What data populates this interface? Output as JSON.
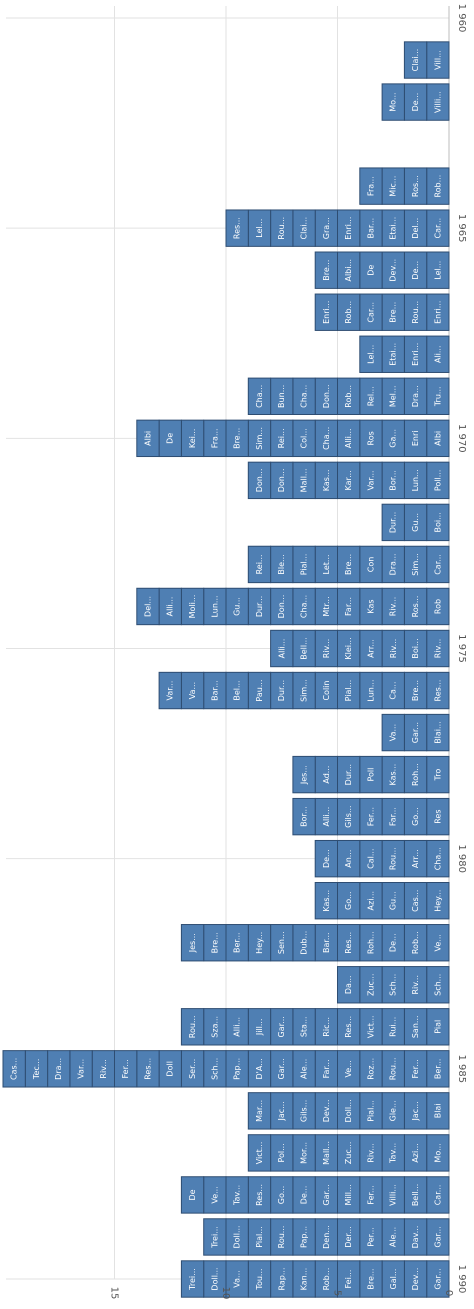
{
  "chart_data": {
    "type": "bar",
    "x_axis": {
      "ticks": [
        "1 960",
        "1 965",
        "1 970",
        "1 975",
        "1 980",
        "1 985",
        "1 990"
      ],
      "range": [
        1960,
        1990
      ]
    },
    "y_axis": {
      "ticks": [
        "0",
        "5",
        "10",
        "15"
      ],
      "range": [
        0,
        20
      ]
    },
    "grid": true,
    "columns": [
      {
        "year": 1961,
        "items": [
          "Vill...",
          "Clai..."
        ]
      },
      {
        "year": 1962,
        "items": [
          "Villi...",
          "De...",
          "Mo..."
        ]
      },
      {
        "year": 1964,
        "items": [
          "Rob...",
          "Ros...",
          "Mic...",
          "Fra..."
        ]
      },
      {
        "year": 1965,
        "items": [
          "Car...",
          "Del...",
          "Etai...",
          "Bar...",
          "Enri...",
          "Gra...",
          "Clai...",
          "Rou...",
          "Lel...",
          "Res..."
        ]
      },
      {
        "year": 1966,
        "items": [
          "Lel...",
          "De...",
          "Dev...",
          "De",
          "Albi...",
          "Bre..."
        ]
      },
      {
        "year": 1967,
        "items": [
          "Enri...",
          "Rou...",
          "Bre...",
          "Car...",
          "Rob...",
          "Enri..."
        ]
      },
      {
        "year": 1968,
        "items": [
          "Ali...",
          "Enri...",
          "Etai...",
          "Lel..."
        ]
      },
      {
        "year": 1969,
        "items": [
          "Tru...",
          "Dra...",
          "Mel...",
          "Rel...",
          "Rob...",
          "Don...",
          "Cha...",
          "Bun...",
          "Cha..."
        ]
      },
      {
        "year": 1970,
        "items": [
          "Albi",
          "Enri",
          "Ga...",
          "Ros",
          "Alli...",
          "Cha...",
          "Col...",
          "Rei...",
          "Sim...",
          "Bre...",
          "Fra...",
          "Kei...",
          "De",
          "Albi"
        ]
      },
      {
        "year": 1971,
        "items": [
          "Poll...",
          "Lun...",
          "Bor...",
          "Var...",
          "Kar...",
          "Kas...",
          "Mall...",
          "Don...",
          "Don..."
        ]
      },
      {
        "year": 1972,
        "items": [
          "Boi...",
          "Gu...",
          "Dur..."
        ]
      },
      {
        "year": 1973,
        "items": [
          "Car...",
          "Sim...",
          "Dra...",
          "Con",
          "Bre...",
          "Let...",
          "Pial...",
          "Ble...",
          "Rei..."
        ]
      },
      {
        "year": 1974,
        "items": [
          "Rob",
          "Ros...",
          "Riv...",
          "Kas",
          "Far...",
          "Mtr...",
          "Cha...",
          "Don...",
          "Dur...",
          "Gu...",
          "Lun...",
          "Moli...",
          "Alli...",
          "Del..."
        ]
      },
      {
        "year": 1975,
        "items": [
          "Riv...",
          "Boi...",
          "Riv...",
          "Arr...",
          "Klei...",
          "Riv...",
          "Bell...",
          "Alli..."
        ]
      },
      {
        "year": 1976,
        "items": [
          "Res...",
          "Bre...",
          "Ca...",
          "Lun...",
          "Pial...",
          "Colin",
          "Sim...",
          "Dur...",
          "Pau...",
          "Bel...",
          "Bar...",
          "Va...",
          "Var..."
        ]
      },
      {
        "year": 1977,
        "items": [
          "Blai...",
          "Gar...",
          "Va..."
        ]
      },
      {
        "year": 1978,
        "items": [
          "Tro",
          "Roh...",
          "Kas...",
          "Poll",
          "Dur...",
          "Ad...",
          "Jes..."
        ]
      },
      {
        "year": 1979,
        "items": [
          "Res",
          "Go...",
          "Far...",
          "Fer...",
          "Gils...",
          "Alli...",
          "Bor..."
        ]
      },
      {
        "year": 1980,
        "items": [
          "Cha...",
          "Arr...",
          "Rou...",
          "Cal...",
          "An...",
          "De..."
        ]
      },
      {
        "year": 1981,
        "items": [
          "Hey...",
          "Cas...",
          "Gu...",
          "Azi...",
          "Go...",
          "Kas..."
        ]
      },
      {
        "year": 1982,
        "items": [
          "Ve...",
          "Rob...",
          "De...",
          "Roh...",
          "Res...",
          "Bar...",
          "Dub...",
          "Sen...",
          "Hey...",
          "Ber...",
          "Bre...",
          "Jes..."
        ]
      },
      {
        "year": 1983,
        "items": [
          "Sch...",
          "Riv...",
          "Sch...",
          "Zuc...",
          "Da..."
        ]
      },
      {
        "year": 1984,
        "items": [
          "Pial",
          "San...",
          "Rui...",
          "Vict...",
          "Res...",
          "Ric...",
          "Sta...",
          "Gar...",
          "Jill...",
          "Alli...",
          "Sza...",
          "Rou..."
        ]
      },
      {
        "year": 1985,
        "items": [
          "Ber...",
          "Fer...",
          "Rou...",
          "Roz...",
          "Ve...",
          "Far...",
          "Ale...",
          "Gar...",
          "D'A...",
          "Pap...",
          "Sch...",
          "Ser...",
          "Doll",
          "Res...",
          "Fer...",
          "Riv...",
          "Var...",
          "Dra...",
          "Tec...",
          "Cas..."
        ]
      },
      {
        "year": 1986,
        "items": [
          "Blai",
          "Jac...",
          "Gle...",
          "Pial...",
          "Doll...",
          "Dev...",
          "Gils...",
          "Jac...",
          "Mar..."
        ]
      },
      {
        "year": 1987,
        "items": [
          "Mo...",
          "Azi...",
          "Tav...",
          "Riv...",
          "Zuc...",
          "Mall...",
          "Mor...",
          "Pol...",
          "Vict..."
        ]
      },
      {
        "year": 1988,
        "items": [
          "Car...",
          "Bell...",
          "Villi...",
          "Fer...",
          "Mill...",
          "Gar...",
          "De...",
          "Go...",
          "Res...",
          "Tav...",
          "Ve...",
          "De"
        ]
      },
      {
        "year": 1989,
        "items": [
          "Gar...",
          "Dav...",
          "Ale...",
          "Per...",
          "Der...",
          "Den...",
          "Pap...",
          "Rou...",
          "Pial...",
          "Doll...",
          "Trei..."
        ]
      },
      {
        "year": 1990,
        "items": [
          "Gar...",
          "Dev...",
          "Gal...",
          "Bre...",
          "Fei...",
          "Rob...",
          "Kan...",
          "Rap...",
          "Tou...",
          "Va...",
          "Doll...",
          "Trei..."
        ]
      }
    ],
    "colors": {
      "bar": "#4f7fb3",
      "border": "#2e4d72",
      "label": "#ffffff"
    }
  }
}
